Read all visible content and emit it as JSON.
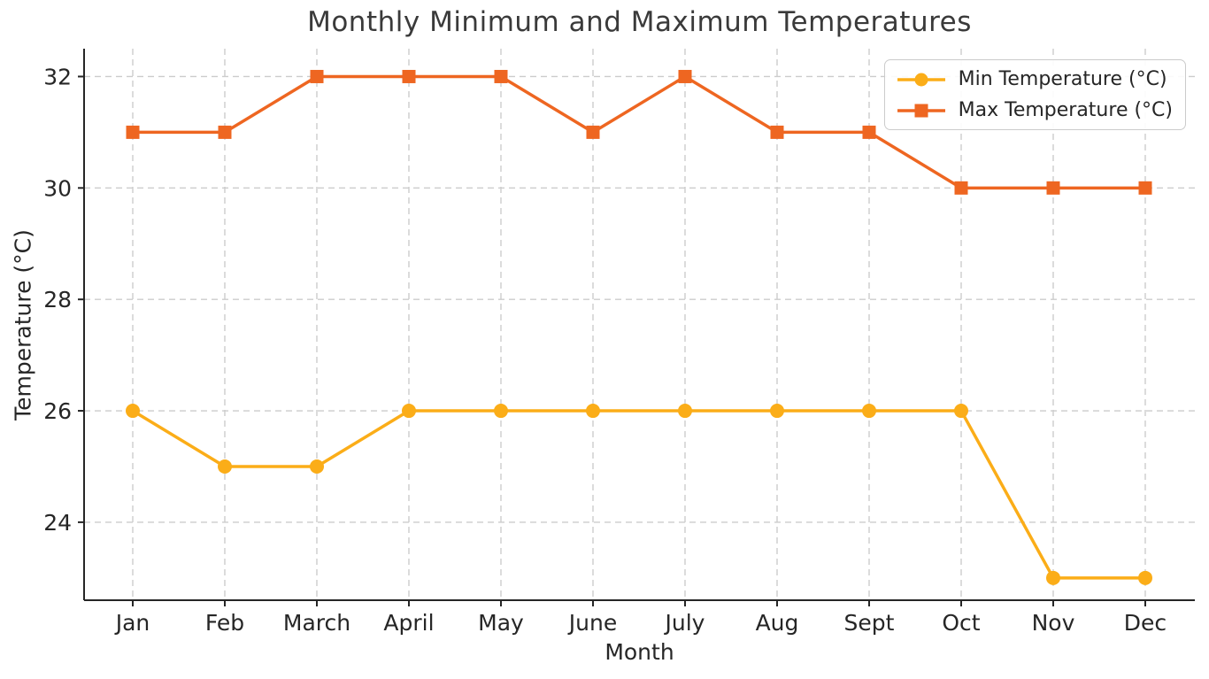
{
  "chart_data": {
    "type": "line",
    "title": "Monthly Minimum and Maximum Temperatures",
    "xlabel": "Month",
    "ylabel": "Temperature (°C)",
    "categories": [
      "Jan",
      "Feb",
      "March",
      "April",
      "May",
      "June",
      "July",
      "Aug",
      "Sept",
      "Oct",
      "Nov",
      "Dec"
    ],
    "series": [
      {
        "name": "Min Temperature (°C)",
        "values": [
          26,
          25,
          25,
          26,
          26,
          26,
          26,
          26,
          26,
          26,
          23,
          23
        ],
        "color": "#FBAD18",
        "marker": "circle"
      },
      {
        "name": "Max Temperature (°C)",
        "values": [
          31,
          31,
          32,
          32,
          32,
          31,
          32,
          31,
          31,
          30,
          30,
          30
        ],
        "color": "#EE6621",
        "marker": "square"
      }
    ],
    "ylim": [
      22.6,
      32.5
    ],
    "yticks": [
      24,
      26,
      28,
      30,
      32
    ],
    "grid": true,
    "grid_style": "dashed",
    "legend_position": "upper right",
    "grid_color": "#cccccc",
    "axis_color": "#262626",
    "text_color": "#262626",
    "background": "#ffffff"
  }
}
